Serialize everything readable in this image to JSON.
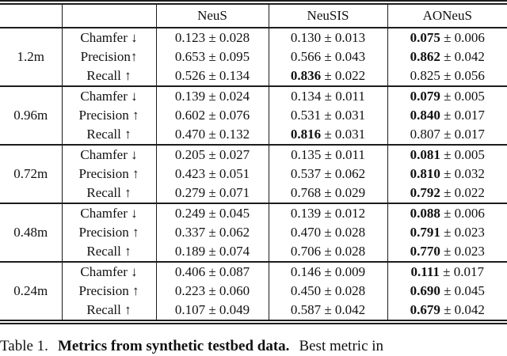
{
  "table": {
    "pm": "±",
    "headers": [
      "NeuS",
      "NeuSIS",
      "AONeuS"
    ],
    "groups": [
      {
        "baseline": "1.2m",
        "rows": [
          {
            "metric": "Chamfer ↓",
            "cells": [
              {
                "m": "0.123",
                "s": "0.028",
                "b": false
              },
              {
                "m": "0.130",
                "s": "0.013",
                "b": false
              },
              {
                "m": "0.075",
                "s": "0.006",
                "b": true
              }
            ]
          },
          {
            "metric": "Precision↑",
            "cells": [
              {
                "m": "0.653",
                "s": "0.095",
                "b": false
              },
              {
                "m": "0.566",
                "s": "0.043",
                "b": false
              },
              {
                "m": "0.862",
                "s": "0.042",
                "b": true
              }
            ]
          },
          {
            "metric": "Recall ↑",
            "cells": [
              {
                "m": "0.526",
                "s": "0.134",
                "b": false
              },
              {
                "m": "0.836",
                "s": "0.022",
                "b": true
              },
              {
                "m": "0.825",
                "s": "0.056",
                "b": false
              }
            ]
          }
        ]
      },
      {
        "baseline": "0.96m",
        "rows": [
          {
            "metric": "Chamfer ↓",
            "cells": [
              {
                "m": "0.139",
                "s": "0.024",
                "b": false
              },
              {
                "m": "0.134",
                "s": "0.011",
                "b": false
              },
              {
                "m": "0.079",
                "s": "0.005",
                "b": true
              }
            ]
          },
          {
            "metric": "Precision ↑",
            "cells": [
              {
                "m": "0.602",
                "s": "0.076",
                "b": false
              },
              {
                "m": "0.531",
                "s": "0.031",
                "b": false
              },
              {
                "m": "0.840",
                "s": "0.017",
                "b": true
              }
            ]
          },
          {
            "metric": "Recall ↑",
            "cells": [
              {
                "m": "0.470",
                "s": "0.132",
                "b": false
              },
              {
                "m": "0.816",
                "s": "0.031",
                "b": true
              },
              {
                "m": "0.807",
                "s": "0.017",
                "b": false
              }
            ]
          }
        ]
      },
      {
        "baseline": "0.72m",
        "rows": [
          {
            "metric": "Chamfer ↓",
            "cells": [
              {
                "m": "0.205",
                "s": "0.027",
                "b": false
              },
              {
                "m": "0.135",
                "s": "0.011",
                "b": false
              },
              {
                "m": "0.081",
                "s": "0.005",
                "b": true
              }
            ]
          },
          {
            "metric": "Precision ↑",
            "cells": [
              {
                "m": "0.423",
                "s": "0.051",
                "b": false
              },
              {
                "m": "0.537",
                "s": "0.062",
                "b": false
              },
              {
                "m": "0.810",
                "s": "0.032",
                "b": true
              }
            ]
          },
          {
            "metric": "Recall ↑",
            "cells": [
              {
                "m": "0.279",
                "s": "0.071",
                "b": false
              },
              {
                "m": "0.768",
                "s": "0.029",
                "b": false
              },
              {
                "m": "0.792",
                "s": "0.022",
                "b": true
              }
            ]
          }
        ]
      },
      {
        "baseline": "0.48m",
        "rows": [
          {
            "metric": "Chamfer ↓",
            "cells": [
              {
                "m": "0.249",
                "s": "0.045",
                "b": false
              },
              {
                "m": "0.139",
                "s": "0.012",
                "b": false
              },
              {
                "m": "0.088",
                "s": "0.006",
                "b": true
              }
            ]
          },
          {
            "metric": "Precision ↑",
            "cells": [
              {
                "m": "0.337",
                "s": "0.062",
                "b": false
              },
              {
                "m": "0.470",
                "s": "0.028",
                "b": false
              },
              {
                "m": "0.791",
                "s": "0.023",
                "b": true
              }
            ]
          },
          {
            "metric": "Recall ↑",
            "cells": [
              {
                "m": "0.189",
                "s": "0.074",
                "b": false
              },
              {
                "m": "0.706",
                "s": "0.028",
                "b": false
              },
              {
                "m": "0.770",
                "s": "0.023",
                "b": true
              }
            ]
          }
        ]
      },
      {
        "baseline": "0.24m",
        "rows": [
          {
            "metric": "Chamfer ↓",
            "cells": [
              {
                "m": "0.406",
                "s": "0.087",
                "b": false
              },
              {
                "m": "0.146",
                "s": "0.009",
                "b": false
              },
              {
                "m": "0.111",
                "s": "0.017",
                "b": true
              }
            ]
          },
          {
            "metric": "Precision ↑",
            "cells": [
              {
                "m": "0.223",
                "s": "0.060",
                "b": false
              },
              {
                "m": "0.450",
                "s": "0.028",
                "b": false
              },
              {
                "m": "0.690",
                "s": "0.045",
                "b": true
              }
            ]
          },
          {
            "metric": "Recall ↑",
            "cells": [
              {
                "m": "0.107",
                "s": "0.049",
                "b": false
              },
              {
                "m": "0.587",
                "s": "0.042",
                "b": false
              },
              {
                "m": "0.679",
                "s": "0.042",
                "b": true
              }
            ]
          }
        ]
      }
    ],
    "caption": {
      "label": "Table 1.",
      "title": "Metrics from synthetic testbed data.",
      "rest": "Best metric in"
    }
  }
}
